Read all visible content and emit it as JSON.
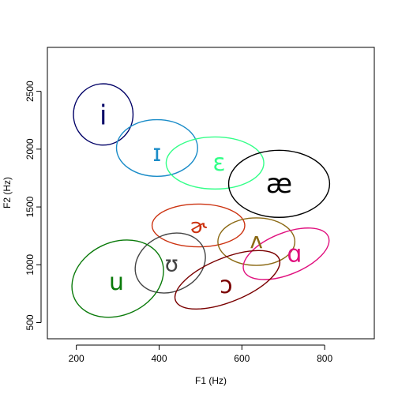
{
  "chart_data": {
    "type": "scatter",
    "title": "",
    "xlabel": "F1 (Hz)",
    "ylabel": "F2 (Hz)",
    "xlim": [
      130,
      920
    ],
    "ylim": [
      360,
      2880
    ],
    "xticks": [
      200,
      400,
      600,
      800
    ],
    "yticks": [
      500,
      1000,
      1500,
      2000,
      2500
    ],
    "xtick_labels": [
      "200",
      "400",
      "600",
      "800"
    ],
    "ytick_labels": [
      "500",
      "1000",
      "1500",
      "2000",
      "2500"
    ],
    "grid": false,
    "legend": "none",
    "series": [
      {
        "label": "i",
        "color": "#000066",
        "f1": 265,
        "f2": 2290,
        "cx": 265,
        "cy": 2300,
        "rx": 72,
        "ry": 265,
        "angle": 0,
        "label_size": 34
      },
      {
        "label": "ɪ",
        "color": "#1a8cc8",
        "f1": 395,
        "f2": 1960,
        "cx": 395,
        "cy": 2010,
        "rx": 98,
        "ry": 245,
        "angle": 0,
        "label_size": 30
      },
      {
        "label": "ɛ",
        "color": "#33ff88",
        "f1": 545,
        "f2": 1880,
        "cx": 535,
        "cy": 1880,
        "rx": 118,
        "ry": 225,
        "angle": 0,
        "label_size": 30
      },
      {
        "label": "æ",
        "color": "#000000",
        "f1": 690,
        "f2": 1700,
        "cx": 690,
        "cy": 1700,
        "rx": 122,
        "ry": 290,
        "angle": 0,
        "label_size": 34
      },
      {
        "label": "ɚ",
        "color": "#cc3311",
        "f1": 495,
        "f2": 1330,
        "cx": 495,
        "cy": 1340,
        "rx": 112,
        "ry": 185,
        "angle": 0,
        "label_size": 26
      },
      {
        "label": "ʌ",
        "color": "#8b6914",
        "f1": 635,
        "f2": 1210,
        "cx": 635,
        "cy": 1200,
        "rx": 93,
        "ry": 205,
        "angle": 0,
        "label_size": 28
      },
      {
        "label": "ɑ",
        "color": "#e0107e",
        "f1": 727,
        "f2": 1090,
        "cx": 707,
        "cy": 1095,
        "rx": 110,
        "ry": 180,
        "angle": -22,
        "label_size": 30
      },
      {
        "label": "ʊ",
        "color": "#444444",
        "f1": 430,
        "f2": 1010,
        "cx": 427,
        "cy": 1015,
        "rx": 88,
        "ry": 245,
        "angle": -25,
        "label_size": 28
      },
      {
        "label": "u",
        "color": "#0a7a0a",
        "f1": 297,
        "f2": 850,
        "cx": 300,
        "cy": 880,
        "rx": 115,
        "ry": 315,
        "angle": -25,
        "label_size": 30
      },
      {
        "label": "ɔ",
        "color": "#7a0000",
        "f1": 562,
        "f2": 820,
        "cx": 565,
        "cy": 870,
        "rx": 135,
        "ry": 190,
        "angle": -22,
        "label_size": 30
      }
    ]
  }
}
